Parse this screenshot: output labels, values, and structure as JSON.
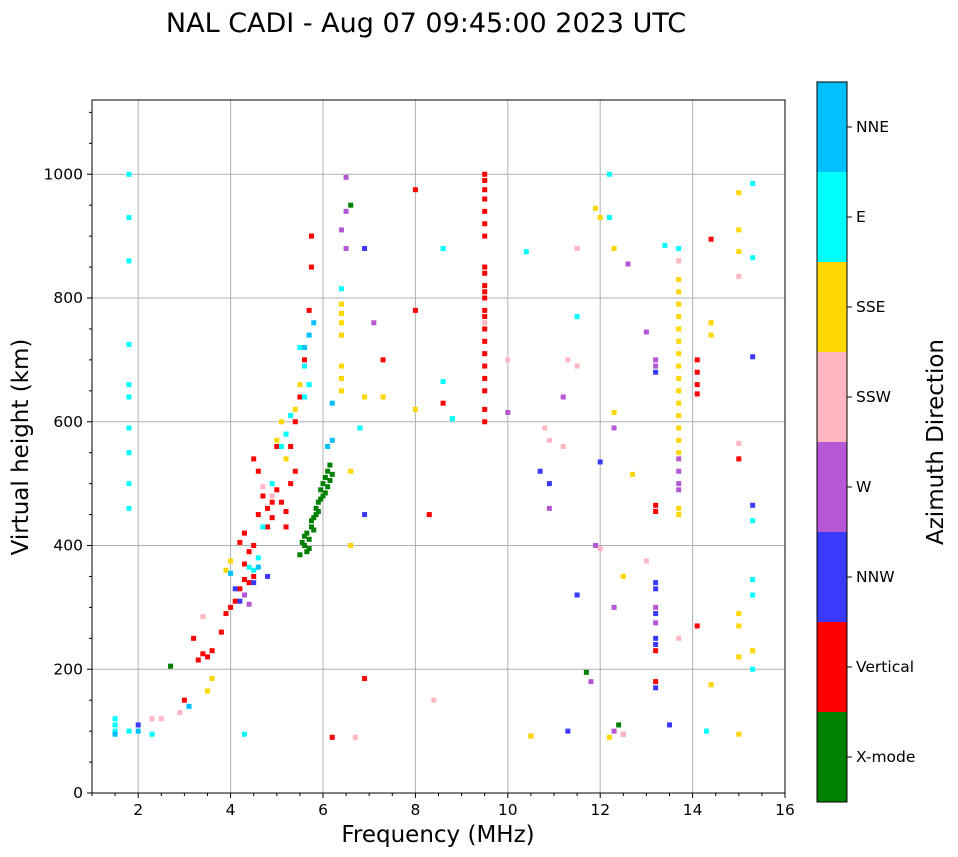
{
  "chart_data": {
    "type": "scatter",
    "title": "NAL CADI - Aug 07 09:45:00 2023 UTC",
    "xlabel": "Frequency (MHz)",
    "ylabel": "Virtual height (km)",
    "xlim": [
      1,
      16
    ],
    "ylim": [
      0,
      1120
    ],
    "xticks": [
      2,
      4,
      6,
      8,
      10,
      12,
      14,
      16
    ],
    "yticks": [
      0,
      200,
      400,
      600,
      800,
      1000
    ],
    "grid": true,
    "colorbar": {
      "label": "Azimuth Direction",
      "categories": [
        {
          "name": "X-mode",
          "color": "#008000"
        },
        {
          "name": "Vertical",
          "color": "#ff0000"
        },
        {
          "name": "NNW",
          "color": "#3a3aff"
        },
        {
          "name": "W",
          "color": "#b657d6"
        },
        {
          "name": "SSW",
          "color": "#ffb6c1"
        },
        {
          "name": "SSE",
          "color": "#ffd700"
        },
        {
          "name": "E",
          "color": "#00ffff"
        },
        {
          "name": "NNE",
          "color": "#00bfff"
        }
      ]
    },
    "series": [
      {
        "name": "X-mode",
        "points": [
          [
            5.5,
            385
          ],
          [
            5.6,
            400
          ],
          [
            5.65,
            420
          ],
          [
            5.7,
            410
          ],
          [
            5.75,
            430
          ],
          [
            5.8,
            445
          ],
          [
            5.85,
            460
          ],
          [
            5.9,
            470
          ],
          [
            5.95,
            490
          ],
          [
            6.0,
            500
          ],
          [
            6.05,
            510
          ],
          [
            6.1,
            520
          ],
          [
            6.15,
            505
          ],
          [
            5.6,
            415
          ],
          [
            5.7,
            395
          ],
          [
            5.8,
            425
          ],
          [
            5.9,
            455
          ],
          [
            6.0,
            480
          ],
          [
            6.1,
            495
          ],
          [
            6.2,
            515
          ],
          [
            5.55,
            405
          ],
          [
            5.65,
            390
          ],
          [
            5.75,
            440
          ],
          [
            5.85,
            450
          ],
          [
            5.95,
            475
          ],
          [
            6.05,
            485
          ],
          [
            6.15,
            530
          ],
          [
            2.7,
            205
          ],
          [
            6.6,
            950
          ],
          [
            11.7,
            195
          ],
          [
            12.4,
            110
          ]
        ]
      },
      {
        "name": "Vertical",
        "points": [
          [
            3.3,
            215
          ],
          [
            3.4,
            225
          ],
          [
            3.5,
            220
          ],
          [
            3.6,
            230
          ],
          [
            3.8,
            260
          ],
          [
            3.9,
            290
          ],
          [
            4.0,
            300
          ],
          [
            4.1,
            310
          ],
          [
            4.2,
            330
          ],
          [
            4.3,
            345
          ],
          [
            4.4,
            340
          ],
          [
            4.5,
            350
          ],
          [
            4.3,
            370
          ],
          [
            4.4,
            390
          ],
          [
            4.5,
            400
          ],
          [
            4.2,
            405
          ],
          [
            4.3,
            420
          ],
          [
            4.6,
            450
          ],
          [
            4.7,
            480
          ],
          [
            4.8,
            460
          ],
          [
            4.9,
            470
          ],
          [
            5.0,
            490
          ],
          [
            5.1,
            470
          ],
          [
            5.2,
            455
          ],
          [
            5.3,
            500
          ],
          [
            5.4,
            520
          ],
          [
            5.3,
            560
          ],
          [
            5.4,
            600
          ],
          [
            5.5,
            640
          ],
          [
            5.6,
            700
          ],
          [
            5.7,
            780
          ],
          [
            5.75,
            850
          ],
          [
            5.75,
            900
          ],
          [
            4.5,
            540
          ],
          [
            4.6,
            520
          ],
          [
            5.0,
            560
          ],
          [
            4.8,
            430
          ],
          [
            4.9,
            445
          ],
          [
            5.2,
            430
          ],
          [
            3.2,
            250
          ],
          [
            3.0,
            150
          ],
          [
            6.2,
            90
          ],
          [
            6.9,
            185
          ],
          [
            7.3,
            700
          ],
          [
            8.0,
            780
          ],
          [
            8.0,
            975
          ],
          [
            9.5,
            1000
          ],
          [
            9.5,
            990
          ],
          [
            9.5,
            975
          ],
          [
            9.5,
            960
          ],
          [
            9.5,
            940
          ],
          [
            9.5,
            920
          ],
          [
            9.5,
            900
          ],
          [
            9.5,
            850
          ],
          [
            9.5,
            840
          ],
          [
            9.5,
            820
          ],
          [
            9.5,
            810
          ],
          [
            9.5,
            800
          ],
          [
            9.5,
            780
          ],
          [
            9.5,
            770
          ],
          [
            9.5,
            750
          ],
          [
            9.5,
            730
          ],
          [
            9.5,
            710
          ],
          [
            9.5,
            690
          ],
          [
            9.5,
            670
          ],
          [
            9.5,
            650
          ],
          [
            9.5,
            620
          ],
          [
            9.5,
            600
          ],
          [
            8.3,
            450
          ],
          [
            8.6,
            630
          ],
          [
            13.2,
            465
          ],
          [
            13.2,
            455
          ],
          [
            13.2,
            180
          ],
          [
            13.2,
            230
          ],
          [
            14.1,
            700
          ],
          [
            14.1,
            680
          ],
          [
            14.1,
            660
          ],
          [
            14.1,
            645
          ],
          [
            14.1,
            270
          ],
          [
            14.4,
            895
          ],
          [
            15.0,
            540
          ],
          [
            10.5,
            92
          ]
        ]
      },
      {
        "name": "NNW",
        "points": [
          [
            4.1,
            330
          ],
          [
            4.2,
            310
          ],
          [
            4.5,
            340
          ],
          [
            4.8,
            350
          ],
          [
            13.2,
            340
          ],
          [
            13.2,
            330
          ],
          [
            13.2,
            240
          ],
          [
            13.2,
            250
          ],
          [
            13.2,
            170
          ],
          [
            13.2,
            290
          ],
          [
            13.2,
            680
          ],
          [
            13.5,
            110
          ],
          [
            15.3,
            465
          ],
          [
            15.3,
            705
          ],
          [
            10.7,
            520
          ],
          [
            10.9,
            500
          ],
          [
            11.5,
            320
          ],
          [
            12.0,
            535
          ],
          [
            11.3,
            100
          ],
          [
            2.0,
            110
          ],
          [
            6.9,
            450
          ],
          [
            6.9,
            880
          ]
        ]
      },
      {
        "name": "W",
        "points": [
          [
            13.2,
            700
          ],
          [
            13.2,
            690
          ],
          [
            13.2,
            275
          ],
          [
            13.2,
            300
          ],
          [
            13.7,
            540
          ],
          [
            13.7,
            520
          ],
          [
            13.7,
            500
          ],
          [
            13.7,
            490
          ],
          [
            6.5,
            995
          ],
          [
            6.5,
            940
          ],
          [
            6.4,
            910
          ],
          [
            6.5,
            880
          ],
          [
            7.1,
            760
          ],
          [
            10.0,
            615
          ],
          [
            11.2,
            640
          ],
          [
            11.5,
            880
          ],
          [
            12.6,
            855
          ],
          [
            12.3,
            590
          ],
          [
            12.3,
            300
          ],
          [
            12.3,
            100
          ],
          [
            13.0,
            745
          ],
          [
            12.5,
            95
          ],
          [
            10.9,
            460
          ],
          [
            11.8,
            180
          ],
          [
            11.9,
            400
          ],
          [
            4.3,
            320
          ],
          [
            4.4,
            305
          ]
        ]
      },
      {
        "name": "SSW",
        "points": [
          [
            6.7,
            90
          ],
          [
            8.4,
            150
          ],
          [
            9.5,
            760
          ],
          [
            10.0,
            700
          ],
          [
            10.8,
            590
          ],
          [
            10.9,
            570
          ],
          [
            11.2,
            560
          ],
          [
            11.3,
            700
          ],
          [
            11.5,
            690
          ],
          [
            11.5,
            880
          ],
          [
            12.3,
            880
          ],
          [
            13.7,
            860
          ],
          [
            15.0,
            835
          ],
          [
            15.0,
            565
          ],
          [
            12.0,
            395
          ],
          [
            13.0,
            375
          ],
          [
            2.3,
            120
          ],
          [
            2.5,
            120
          ],
          [
            2.9,
            130
          ],
          [
            4.7,
            495
          ],
          [
            4.9,
            480
          ],
          [
            3.4,
            285
          ],
          [
            12.5,
            95
          ],
          [
            13.7,
            250
          ]
        ]
      },
      {
        "name": "SSE",
        "points": [
          [
            13.7,
            830
          ],
          [
            13.7,
            810
          ],
          [
            13.7,
            790
          ],
          [
            13.7,
            770
          ],
          [
            13.7,
            750
          ],
          [
            13.7,
            730
          ],
          [
            13.7,
            710
          ],
          [
            13.7,
            690
          ],
          [
            13.7,
            670
          ],
          [
            13.7,
            650
          ],
          [
            13.7,
            630
          ],
          [
            13.7,
            610
          ],
          [
            13.7,
            590
          ],
          [
            13.7,
            570
          ],
          [
            13.7,
            550
          ],
          [
            13.7,
            460
          ],
          [
            13.7,
            450
          ],
          [
            6.4,
            790
          ],
          [
            6.4,
            775
          ],
          [
            6.4,
            760
          ],
          [
            6.4,
            740
          ],
          [
            6.4,
            690
          ],
          [
            6.4,
            670
          ],
          [
            6.4,
            650
          ],
          [
            6.6,
            520
          ],
          [
            6.6,
            400
          ],
          [
            6.9,
            640
          ],
          [
            7.3,
            640
          ],
          [
            8.0,
            620
          ],
          [
            12.3,
            615
          ],
          [
            12.3,
            880
          ],
          [
            12.7,
            515
          ],
          [
            12.5,
            350
          ],
          [
            15.0,
            290
          ],
          [
            15.0,
            270
          ],
          [
            15.0,
            220
          ],
          [
            15.0,
            95
          ],
          [
            15.3,
            230
          ],
          [
            14.4,
            175
          ],
          [
            14.4,
            760
          ],
          [
            14.4,
            740
          ],
          [
            15.0,
            970
          ],
          [
            15.0,
            910
          ],
          [
            15.0,
            875
          ],
          [
            12.0,
            930
          ],
          [
            11.9,
            945
          ],
          [
            5.1,
            600
          ],
          [
            5.0,
            570
          ],
          [
            5.2,
            540
          ],
          [
            5.4,
            620
          ],
          [
            5.5,
            660
          ],
          [
            3.9,
            360
          ],
          [
            4.0,
            375
          ],
          [
            3.6,
            185
          ],
          [
            3.5,
            165
          ],
          [
            12.2,
            90
          ],
          [
            10.5,
            92
          ]
        ]
      },
      {
        "name": "E",
        "points": [
          [
            1.8,
            1000
          ],
          [
            1.8,
            930
          ],
          [
            1.8,
            860
          ],
          [
            1.8,
            725
          ],
          [
            1.8,
            660
          ],
          [
            1.8,
            640
          ],
          [
            1.8,
            590
          ],
          [
            1.8,
            550
          ],
          [
            1.8,
            500
          ],
          [
            1.8,
            460
          ],
          [
            1.5,
            120
          ],
          [
            1.5,
            110
          ],
          [
            1.5,
            100
          ],
          [
            1.8,
            100
          ],
          [
            2.3,
            95
          ],
          [
            4.3,
            95
          ],
          [
            5.5,
            720
          ],
          [
            5.6,
            690
          ],
          [
            5.7,
            660
          ],
          [
            5.6,
            640
          ],
          [
            5.3,
            610
          ],
          [
            5.2,
            580
          ],
          [
            5.1,
            560
          ],
          [
            4.9,
            500
          ],
          [
            4.7,
            430
          ],
          [
            4.5,
            360
          ],
          [
            4.4,
            365
          ],
          [
            4.6,
            380
          ],
          [
            6.4,
            815
          ],
          [
            6.8,
            590
          ],
          [
            8.6,
            880
          ],
          [
            8.6,
            665
          ],
          [
            8.8,
            605
          ],
          [
            10.4,
            875
          ],
          [
            11.5,
            770
          ],
          [
            12.2,
            1000
          ],
          [
            12.2,
            930
          ],
          [
            13.4,
            885
          ],
          [
            13.7,
            880
          ],
          [
            15.3,
            985
          ],
          [
            15.3,
            865
          ],
          [
            15.3,
            440
          ],
          [
            15.3,
            345
          ],
          [
            15.3,
            320
          ],
          [
            15.3,
            200
          ],
          [
            14.3,
            100
          ]
        ]
      },
      {
        "name": "NNE",
        "points": [
          [
            6.2,
            630
          ],
          [
            6.2,
            570
          ],
          [
            6.1,
            560
          ],
          [
            5.7,
            740
          ],
          [
            5.8,
            760
          ],
          [
            5.6,
            720
          ],
          [
            3.1,
            140
          ],
          [
            1.5,
            95
          ],
          [
            2.0,
            100
          ],
          [
            4.0,
            355
          ],
          [
            4.6,
            365
          ]
        ]
      }
    ]
  }
}
